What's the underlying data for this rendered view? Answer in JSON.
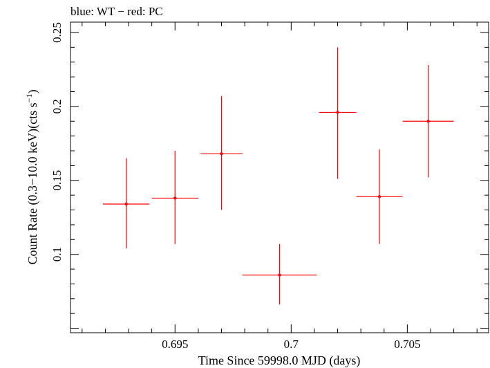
{
  "chart_data": {
    "type": "scatter",
    "title": "blue: WT − red: PC",
    "xlabel": "Time Since 59998.0 MJD (days)",
    "ylabel": "Count Rate (0.3−10.0 keV)(cts s",
    "ylabel_sup": "−1",
    "ylabel_tail": ")",
    "xlim": [
      0.6905,
      0.7085
    ],
    "ylim": [
      0.047,
      0.257
    ],
    "xticks": [
      {
        "value": 0.695,
        "label": "0.695"
      },
      {
        "value": 0.7,
        "label": "0.7"
      },
      {
        "value": 0.705,
        "label": "0.705"
      }
    ],
    "yticks": [
      {
        "value": 0.1,
        "label": "0.1"
      },
      {
        "value": 0.15,
        "label": "0.15"
      },
      {
        "value": 0.2,
        "label": "0.2"
      },
      {
        "value": 0.25,
        "label": "0.25"
      }
    ],
    "grid": false,
    "series": [
      {
        "color": "#ff0000",
        "points": [
          {
            "x": 0.6929,
            "xerr": 0.001,
            "y": 0.134,
            "yerr_low": 0.03,
            "yerr_high": 0.031
          },
          {
            "x": 0.695,
            "xerr": 0.001,
            "y": 0.138,
            "yerr_low": 0.031,
            "yerr_high": 0.032
          },
          {
            "x": 0.697,
            "xerr": 0.0009,
            "y": 0.168,
            "yerr_low": 0.038,
            "yerr_high": 0.039
          },
          {
            "x": 0.6995,
            "xerr": 0.0016,
            "y": 0.086,
            "yerr_low": 0.02,
            "yerr_high": 0.021
          },
          {
            "x": 0.702,
            "xerr": 0.0008,
            "y": 0.196,
            "yerr_low": 0.045,
            "yerr_high": 0.044
          },
          {
            "x": 0.7038,
            "xerr": 0.001,
            "y": 0.139,
            "yerr_low": 0.032,
            "yerr_high": 0.032
          },
          {
            "x": 0.7059,
            "xerr": 0.0011,
            "y": 0.19,
            "yerr_low": 0.038,
            "yerr_high": 0.038
          }
        ]
      }
    ]
  }
}
